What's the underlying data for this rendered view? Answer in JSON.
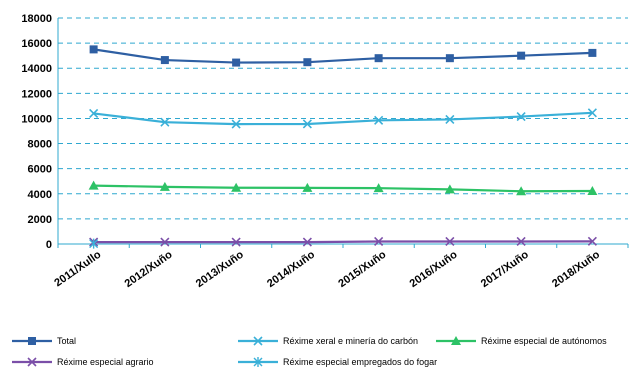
{
  "chart_data": {
    "type": "line",
    "title": "",
    "xlabel": "",
    "ylabel": "",
    "ylim": [
      0,
      18000
    ],
    "yticks": [
      0,
      2000,
      4000,
      6000,
      8000,
      10000,
      12000,
      14000,
      16000,
      18000
    ],
    "ytick_labels": [
      "0",
      "2000",
      "4000",
      "6000",
      "8000",
      "10000",
      "12000",
      "14000",
      "16000",
      "18000"
    ],
    "grid": "horizontal dashed",
    "legend_position": "bottom",
    "categories": [
      "2011/Xullo",
      "2012/Xuño",
      "2013/Xuño",
      "2014/Xuño",
      "2015/Xuño",
      "2016/Xuño",
      "2017/Xuño",
      "2018/Xuño"
    ],
    "series": [
      {
        "name": "Total",
        "color": "#2e5fa3",
        "marker": "square",
        "values": [
          15500,
          14650,
          14450,
          14480,
          14800,
          14800,
          15000,
          15220
        ]
      },
      {
        "name": "Réxime xeral e minería do carbón",
        "color": "#3ab0d8",
        "marker": "x",
        "values": [
          10400,
          9700,
          9550,
          9560,
          9850,
          9920,
          10150,
          10450
        ]
      },
      {
        "name": "Réxime especial de autónomos",
        "color": "#2dc266",
        "marker": "triangle",
        "values": [
          4650,
          4550,
          4480,
          4470,
          4450,
          4350,
          4200,
          4220
        ]
      },
      {
        "name": "Réxime especial agrario",
        "color": "#7b4fa8",
        "marker": "x",
        "values": [
          150,
          150,
          150,
          150,
          200,
          200,
          200,
          210
        ]
      },
      {
        "name": "Réxime especial empregados do fogar",
        "color": "#3ab0d8",
        "marker": "asterisk",
        "values": [
          30,
          null,
          null,
          null,
          null,
          null,
          null,
          null
        ]
      }
    ]
  }
}
